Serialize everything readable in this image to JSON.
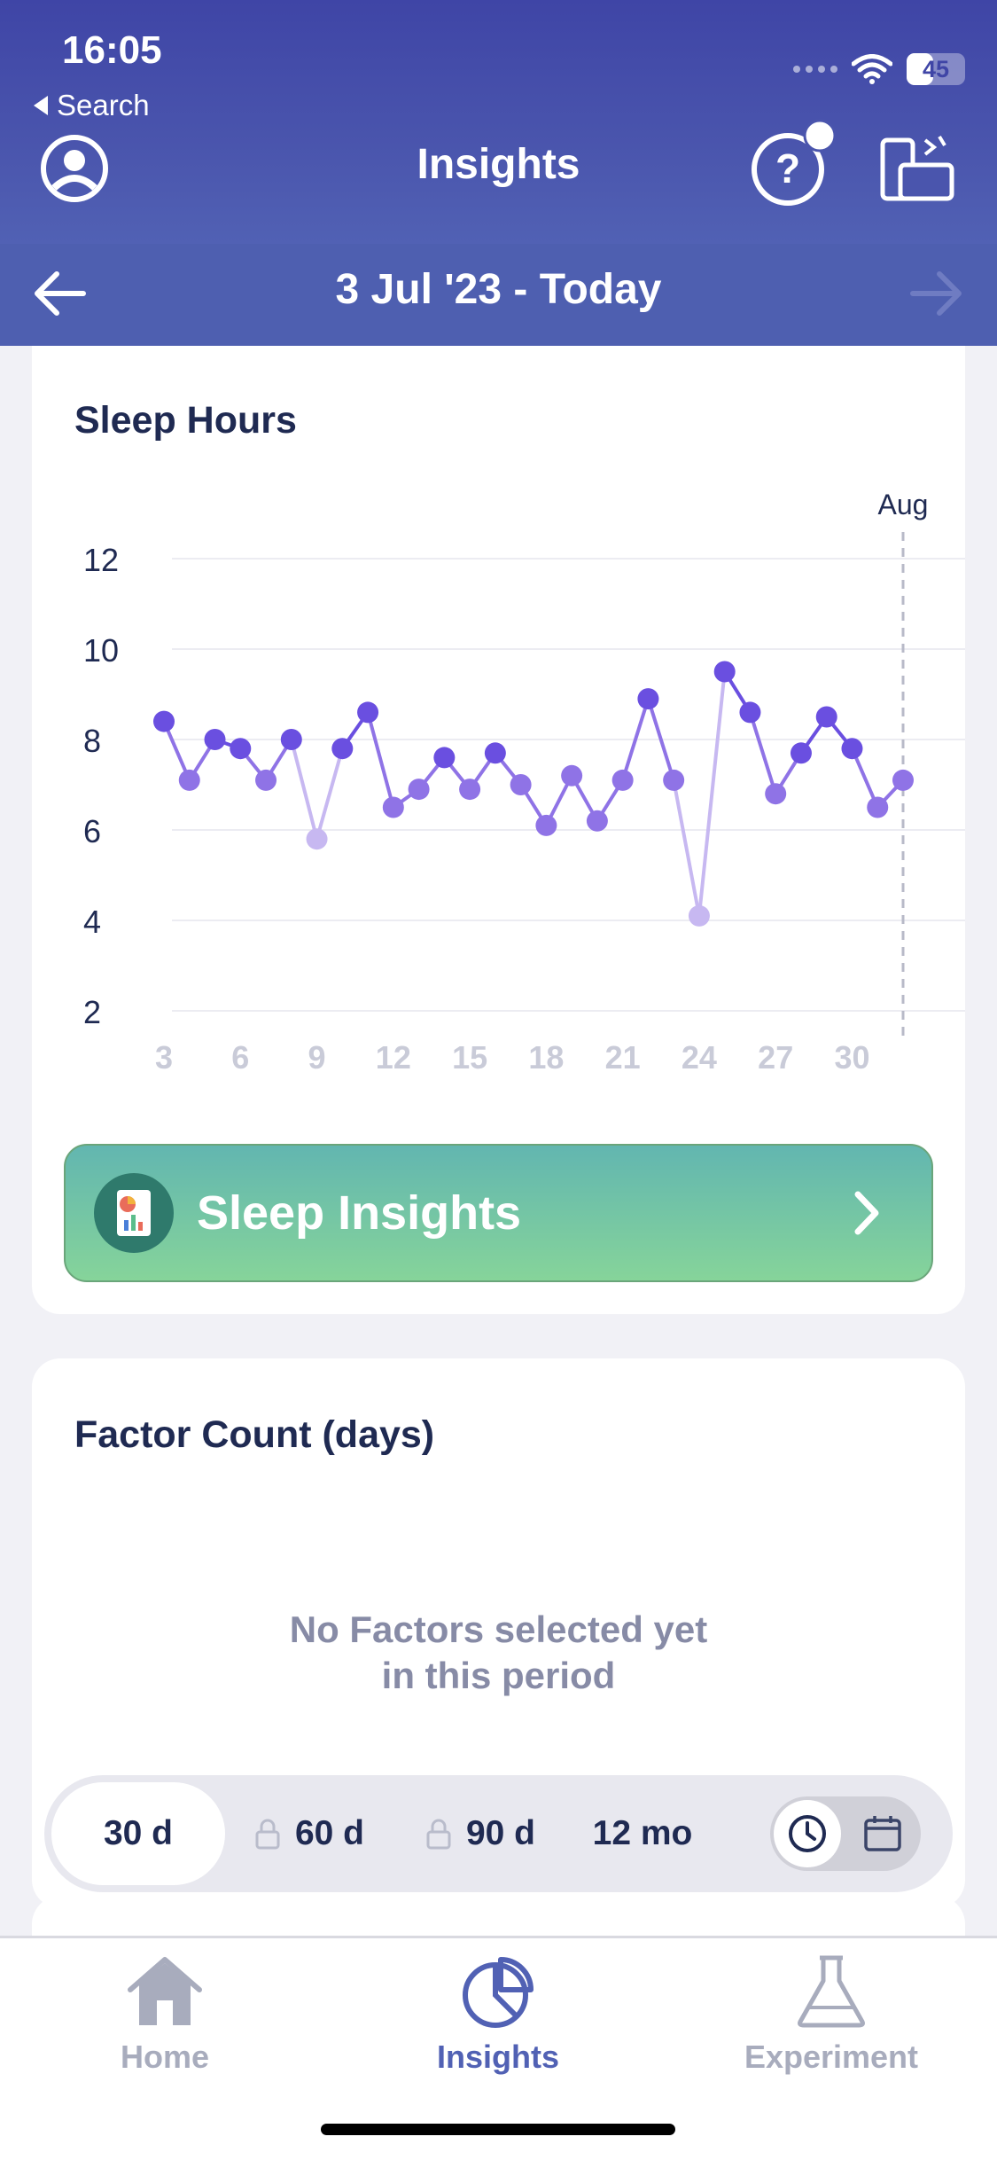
{
  "status": {
    "time": "16:05",
    "back_app": "Search",
    "battery": "45",
    "battery_level": 0.45
  },
  "nav": {
    "title": "Insights",
    "profile_icon": "profile-icon",
    "help_icon": "help-icon",
    "devices_icon": "devices-sync-icon"
  },
  "date_range": {
    "label": "3 Jul '23 - Today"
  },
  "sleep_card": {
    "title": "Sleep Hours",
    "button_label": "Sleep Insights",
    "chart_data": {
      "type": "line",
      "title": "Sleep Hours",
      "x": [
        3,
        4,
        5,
        6,
        7,
        8,
        9,
        10,
        11,
        12,
        13,
        14,
        15,
        16,
        17,
        18,
        19,
        20,
        21,
        22,
        23,
        24,
        25,
        26,
        27,
        28,
        29,
        30,
        31,
        32
      ],
      "values": [
        8.4,
        7.1,
        8.0,
        7.8,
        7.1,
        8.0,
        5.8,
        7.8,
        8.6,
        6.5,
        6.9,
        7.6,
        6.9,
        7.7,
        7.0,
        6.1,
        7.2,
        6.2,
        7.1,
        8.9,
        7.1,
        4.1,
        9.5,
        8.6,
        6.8,
        7.7,
        8.5,
        7.8,
        6.5,
        7.1
      ],
      "x_ticks": [
        "3",
        "6",
        "9",
        "12",
        "15",
        "18",
        "21",
        "24",
        "27",
        "30"
      ],
      "x_tick_values": [
        3,
        6,
        9,
        12,
        15,
        18,
        21,
        24,
        27,
        30
      ],
      "y_ticks": [
        "2",
        "4",
        "6",
        "8",
        "10",
        "12"
      ],
      "y_tick_values": [
        2,
        4,
        6,
        8,
        10,
        12
      ],
      "ylim": [
        2,
        12
      ],
      "xlim": [
        3,
        32
      ],
      "month_marker": {
        "label": "Aug",
        "x": 32
      },
      "grid": true,
      "series_color": "#6a4fe0"
    }
  },
  "factor_card": {
    "title": "Factor Count (days)",
    "empty_line1": "No Factors selected yet",
    "empty_line2": "in this period"
  },
  "range_options": [
    {
      "label": "30 d",
      "locked": false,
      "active": true
    },
    {
      "label": "60 d",
      "locked": true,
      "active": false
    },
    {
      "label": "90 d",
      "locked": true,
      "active": false
    },
    {
      "label": "12 mo",
      "locked": false,
      "active": false
    }
  ],
  "tabs": [
    {
      "label": "Home",
      "icon": "home-icon",
      "active": false
    },
    {
      "label": "Insights",
      "icon": "pie-chart-icon",
      "active": true
    },
    {
      "label": "Experiment",
      "icon": "flask-icon",
      "active": false
    }
  ],
  "colors": {
    "header": "#3f45a6",
    "accent": "#6a4fe0",
    "tab_active": "#5161b4",
    "tab_inactive": "#a8acbd"
  }
}
